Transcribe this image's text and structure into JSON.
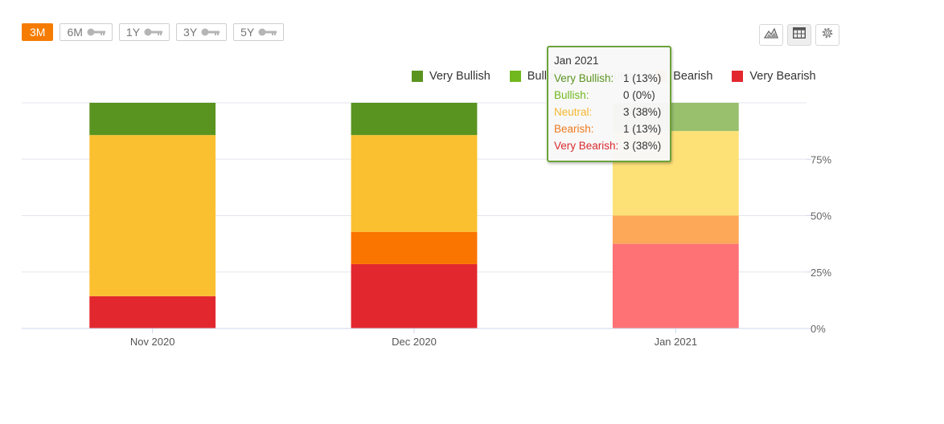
{
  "range_buttons": [
    {
      "label": "3M",
      "active": true,
      "locked": false
    },
    {
      "label": "6M",
      "active": false,
      "locked": true
    },
    {
      "label": "1Y",
      "active": false,
      "locked": true
    },
    {
      "label": "3Y",
      "active": false,
      "locked": true
    },
    {
      "label": "5Y",
      "active": false,
      "locked": true
    }
  ],
  "toolbar": {
    "icons": [
      "area-chart-icon",
      "table-view-icon",
      "settings-gear-icon"
    ]
  },
  "legend": [
    {
      "label": "Very Bullish",
      "color": "#5a9420"
    },
    {
      "label": "Bullish",
      "color": "#71b81f"
    },
    {
      "label": "Neutral",
      "color": "#fac030"
    },
    {
      "label": "Bearish",
      "color": "#fa7400"
    },
    {
      "label": "Very Bearish",
      "color": "#e2282e"
    }
  ],
  "chart_data": {
    "type": "bar",
    "stacked": true,
    "normalized": "percent",
    "categories": [
      "Nov 2020",
      "Dec 2020",
      "Jan 2021"
    ],
    "series": [
      {
        "name": "Very Bullish",
        "values": [
          14.3,
          14.3,
          12.5
        ],
        "color": "#5a9420"
      },
      {
        "name": "Bullish",
        "values": [
          0,
          0,
          0
        ],
        "color": "#71b81f"
      },
      {
        "name": "Neutral",
        "values": [
          71.4,
          42.9,
          37.5
        ],
        "color": "#fac030"
      },
      {
        "name": "Bearish",
        "values": [
          0,
          14.3,
          12.5
        ],
        "color": "#fa7400"
      },
      {
        "name": "Very Bearish",
        "values": [
          14.3,
          28.5,
          37.5
        ],
        "color": "#e2282e"
      }
    ],
    "yticks": [
      "0%",
      "25%",
      "50%",
      "75%"
    ],
    "ylim": [
      0,
      100
    ],
    "y_axis_side": "right",
    "grid": true,
    "legend_position": "top-right",
    "highlighted_category": "Jan 2021"
  },
  "tooltip": {
    "title": "Jan 2021",
    "rows": [
      {
        "label": "Very Bullish:",
        "value": "1 (13%)",
        "color": "#5a9420"
      },
      {
        "label": "Bullish:",
        "value": "0 (0%)",
        "color": "#71b81f"
      },
      {
        "label": "Neutral:",
        "value": "3 (38%)",
        "color": "#f5b730"
      },
      {
        "label": "Bearish:",
        "value": "1 (13%)",
        "color": "#ee7a1e"
      },
      {
        "label": "Very Bearish:",
        "value": "3 (38%)",
        "color": "#d9292e"
      }
    ]
  }
}
